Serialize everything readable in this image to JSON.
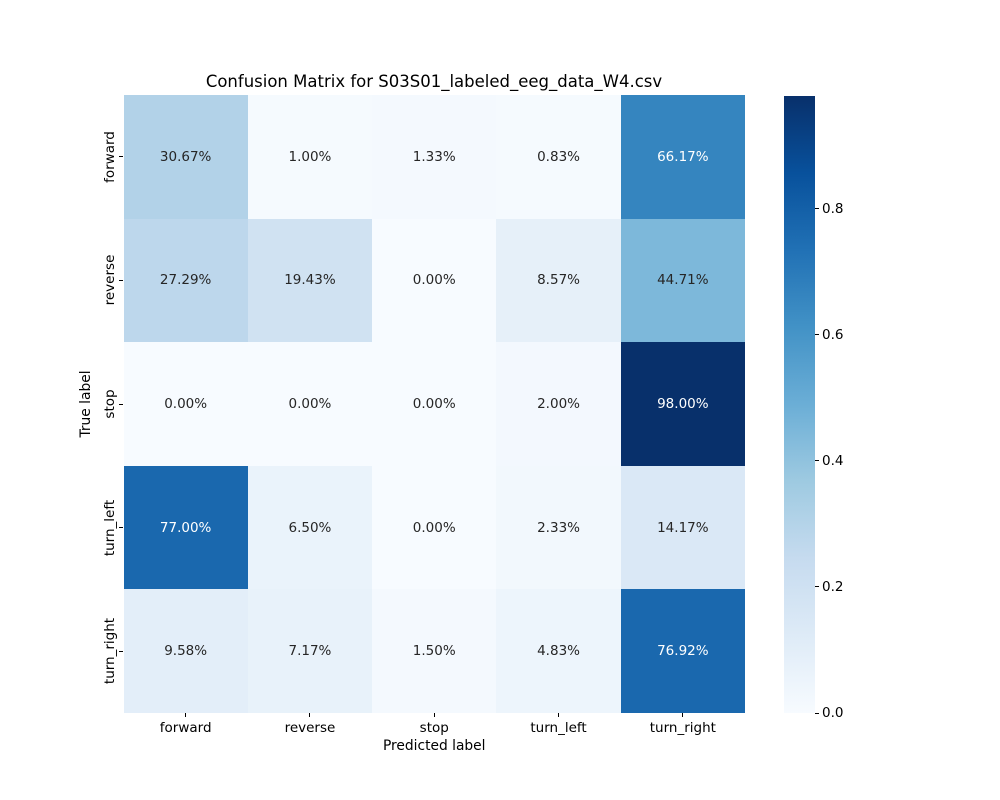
{
  "chart_data": {
    "type": "heatmap",
    "title": "Confusion Matrix for S03S01_labeled_eeg_data_W4.csv",
    "xlabel": "Predicted label",
    "ylabel": "True label",
    "x_categories": [
      "forward",
      "reverse",
      "stop",
      "turn_left",
      "turn_right"
    ],
    "y_categories": [
      "forward",
      "reverse",
      "stop",
      "turn_left",
      "turn_right"
    ],
    "values": [
      [
        0.3067,
        0.01,
        0.0133,
        0.0083,
        0.6617
      ],
      [
        0.2729,
        0.1943,
        0.0,
        0.0857,
        0.4471
      ],
      [
        0.0,
        0.0,
        0.0,
        0.02,
        0.98
      ],
      [
        0.77,
        0.065,
        0.0,
        0.0233,
        0.1417
      ],
      [
        0.0958,
        0.0717,
        0.015,
        0.0483,
        0.7692
      ]
    ],
    "cell_labels": [
      [
        "30.67%",
        "1.00%",
        "1.33%",
        "0.83%",
        "66.17%"
      ],
      [
        "27.29%",
        "19.43%",
        "0.00%",
        "8.57%",
        "44.71%"
      ],
      [
        "0.00%",
        "0.00%",
        "0.00%",
        "2.00%",
        "98.00%"
      ],
      [
        "77.00%",
        "6.50%",
        "0.00%",
        "2.33%",
        "14.17%"
      ],
      [
        "9.58%",
        "7.17%",
        "1.50%",
        "4.83%",
        "76.92%"
      ]
    ],
    "vmin": 0.0,
    "vmax": 0.98,
    "colormap": "Blues",
    "colormap_anchors": [
      "#f7fbff",
      "#deebf7",
      "#c6dbef",
      "#9ecae1",
      "#6baed6",
      "#4292c6",
      "#2171b5",
      "#08519c",
      "#08306b"
    ],
    "colorbar_ticks": [
      {
        "value": 0.0,
        "label": "0.0"
      },
      {
        "value": 0.2,
        "label": "0.2"
      },
      {
        "value": 0.4,
        "label": "0.4"
      },
      {
        "value": 0.6,
        "label": "0.6"
      },
      {
        "value": 0.8,
        "label": "0.8"
      }
    ],
    "colorbar_position": "right",
    "grid": false
  },
  "colors": {
    "background": "#ffffff",
    "annotation_dark": "#262626",
    "annotation_light": "#ffffff",
    "axis_text": "#000000"
  }
}
